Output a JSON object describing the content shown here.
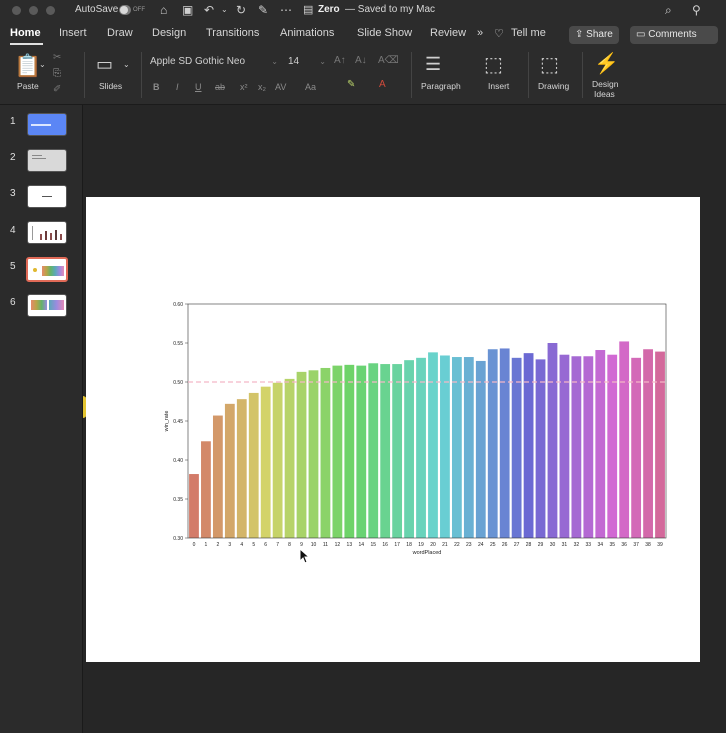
{
  "titlebar": {
    "autosave_label": "AutoSave",
    "autosave_state": "OFF",
    "doc_title": "Zero",
    "doc_status": "— Saved to my Mac"
  },
  "tabs": [
    "Home",
    "Insert",
    "Draw",
    "Design",
    "Transitions",
    "Animations",
    "Slide Show",
    "Review"
  ],
  "tell_me": "Tell me",
  "share_label": "Share",
  "comments_label": "Comments",
  "ribbon": {
    "paste": "Paste",
    "slides": "Slides",
    "font_name": "Apple SD Gothic Neo",
    "font_size": "14",
    "paragraph": "Paragraph",
    "insert": "Insert",
    "drawing": "Drawing",
    "design_ideas_1": "Design",
    "design_ideas_2": "Ideas"
  },
  "slides": [
    {
      "number": "1"
    },
    {
      "number": "2"
    },
    {
      "number": "3"
    },
    {
      "number": "4"
    },
    {
      "number": "5"
    },
    {
      "number": "6"
    }
  ],
  "chart_data": {
    "type": "bar",
    "xlabel": "wordPlaced",
    "ylabel": "win_rate",
    "ylim": [
      0.3,
      0.6
    ],
    "yticks": [
      "0.30",
      "0.35",
      "0.40",
      "0.45",
      "0.50",
      "0.55",
      "0.60"
    ],
    "reference_line": 0.5,
    "categories": [
      "0",
      "1",
      "2",
      "3",
      "4",
      "5",
      "6",
      "7",
      "8",
      "9",
      "10",
      "11",
      "12",
      "13",
      "14",
      "15",
      "16",
      "17",
      "18",
      "19",
      "20",
      "21",
      "22",
      "23",
      "24",
      "25",
      "26",
      "27",
      "28",
      "29",
      "30",
      "31",
      "32",
      "33",
      "34",
      "35",
      "36",
      "37",
      "38",
      "39"
    ],
    "values": [
      0.382,
      0.424,
      0.457,
      0.472,
      0.478,
      0.486,
      0.494,
      0.499,
      0.504,
      0.513,
      0.515,
      0.518,
      0.521,
      0.522,
      0.521,
      0.524,
      0.523,
      0.523,
      0.528,
      0.531,
      0.538,
      0.534,
      0.532,
      0.532,
      0.527,
      0.542,
      0.543,
      0.531,
      0.537,
      0.529,
      0.55,
      0.535,
      0.533,
      0.533,
      0.541,
      0.535,
      0.552,
      0.531,
      0.542,
      0.539
    ]
  }
}
